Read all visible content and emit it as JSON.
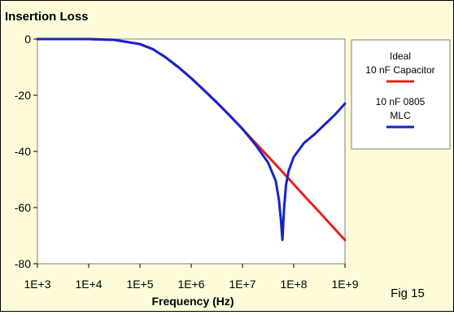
{
  "chart_data": {
    "type": "line",
    "title": "Insertion Loss",
    "xlabel": "Frequency (Hz)",
    "ylabel": "",
    "x_scale": "log",
    "xlim": [
      1000,
      1000000000
    ],
    "ylim": [
      -80,
      0
    ],
    "x_ticks": [
      "1E+3",
      "1E+4",
      "1E+5",
      "1E+6",
      "1E+7",
      "1E+8",
      "1E+9"
    ],
    "y_ticks": [
      "0",
      "-20",
      "-40",
      "-60",
      "-80"
    ],
    "grid": false,
    "legend_position": "right",
    "annotation": "Fig 15",
    "series": [
      {
        "name": "Ideal 10 nF Capacitor",
        "legend_lines": [
          "Ideal",
          "10 nF Capacitor"
        ],
        "color": "#e8201a",
        "points": [
          [
            1000,
            0
          ],
          [
            10000,
            0
          ],
          [
            31623,
            -0.3
          ],
          [
            100000,
            -1.8
          ],
          [
            177828,
            -3.6
          ],
          [
            316228,
            -6.5
          ],
          [
            562341,
            -10
          ],
          [
            1000000,
            -13.9
          ],
          [
            1778279,
            -18.2
          ],
          [
            3162278,
            -22.6
          ],
          [
            5623413,
            -27.2
          ],
          [
            10000000,
            -32
          ],
          [
            17782794,
            -36.9
          ],
          [
            31622777,
            -41.8
          ],
          [
            56234133,
            -46.7
          ],
          [
            100000000,
            -51.7
          ],
          [
            177827941,
            -56.7
          ],
          [
            316227766,
            -61.6
          ],
          [
            562341325,
            -66.6
          ],
          [
            1000000000,
            -71.6
          ]
        ]
      },
      {
        "name": "10 nF 0805 MLC",
        "legend_lines": [
          "10 nF 0805",
          "MLC"
        ],
        "color": "#1424c8",
        "points": [
          [
            1000,
            0
          ],
          [
            10000,
            0
          ],
          [
            31623,
            -0.3
          ],
          [
            100000,
            -1.8
          ],
          [
            177828,
            -3.6
          ],
          [
            316228,
            -6.5
          ],
          [
            562341,
            -10
          ],
          [
            1000000,
            -13.9
          ],
          [
            1778279,
            -18.2
          ],
          [
            3162278,
            -22.6
          ],
          [
            5623413,
            -27.2
          ],
          [
            10000000,
            -32
          ],
          [
            17782794,
            -37.5
          ],
          [
            31622777,
            -44
          ],
          [
            44668359,
            -50.5
          ],
          [
            51286138,
            -57
          ],
          [
            56234133,
            -64.5
          ],
          [
            60255959,
            -71.5
          ],
          [
            64565423,
            -61
          ],
          [
            70794578,
            -52
          ],
          [
            79432823,
            -47
          ],
          [
            100000000,
            -42
          ],
          [
            158489319,
            -37
          ],
          [
            251188643,
            -34
          ],
          [
            398107171,
            -30.5
          ],
          [
            630957344,
            -27
          ],
          [
            1000000000,
            -23
          ]
        ]
      }
    ]
  }
}
